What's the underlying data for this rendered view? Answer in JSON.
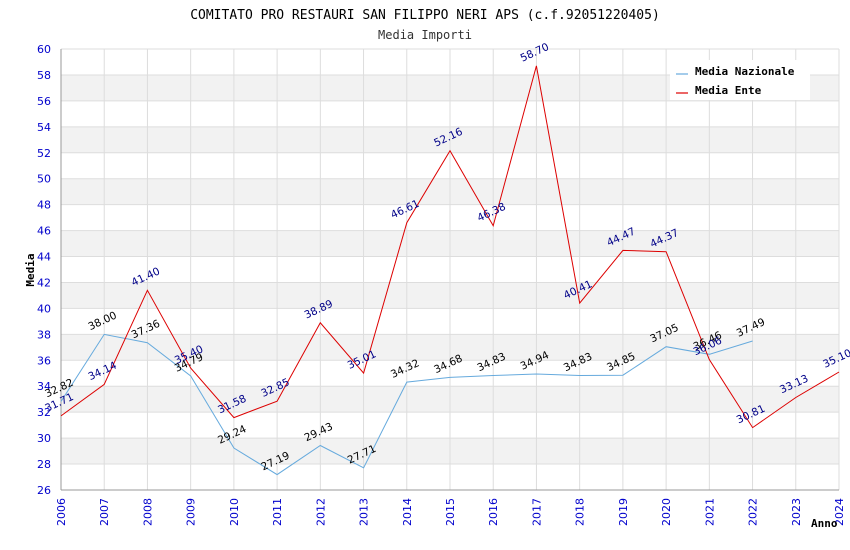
{
  "chart_data": {
    "type": "line",
    "title": "COMITATO PRO RESTAURI SAN FILIPPO NERI APS (c.f.92051220405)",
    "subtitle": "Media Importi",
    "xlabel": "Anno",
    "ylabel": "Media",
    "ylim": [
      26,
      60
    ],
    "yticks": [
      26,
      28,
      30,
      32,
      34,
      36,
      38,
      40,
      42,
      44,
      46,
      48,
      50,
      52,
      54,
      56,
      58,
      60
    ],
    "categories": [
      "2006",
      "2007",
      "2008",
      "2009",
      "2010",
      "2011",
      "2012",
      "2013",
      "2014",
      "2015",
      "2016",
      "2017",
      "2018",
      "2019",
      "2020",
      "2021",
      "2022",
      "2023",
      "2024"
    ],
    "series": [
      {
        "name": "Media Nazionale",
        "color": "#66aadd",
        "label_color": "#000000",
        "values": [
          32.82,
          38.0,
          37.36,
          34.79,
          29.24,
          27.19,
          29.43,
          27.71,
          34.32,
          34.68,
          34.83,
          34.94,
          34.83,
          34.85,
          37.05,
          36.46,
          37.49,
          null,
          null
        ],
        "labels": [
          "32.82",
          "38.00",
          "37.36",
          "34.79",
          "29.24",
          "27.19",
          "29.43",
          "27.71",
          "34.32",
          "34.68",
          "34.83",
          "34.94",
          "34.83",
          "34.85",
          "37.05",
          "36.46",
          "37.49",
          "",
          ""
        ]
      },
      {
        "name": "Media Ente",
        "color": "#dd0000",
        "label_color": "#000088",
        "values": [
          31.71,
          34.14,
          41.4,
          35.4,
          31.58,
          32.85,
          38.89,
          35.01,
          46.61,
          52.16,
          46.38,
          58.7,
          40.41,
          44.47,
          44.37,
          36.06,
          30.81,
          33.13,
          35.1
        ],
        "labels": [
          "31.71",
          "34.14",
          "41.40",
          "35.40",
          "31.58",
          "32.85",
          "38.89",
          "35.01",
          "46.61",
          "52.16",
          "46.38",
          "58.70",
          "40.41",
          "44.47",
          "44.37",
          "36.06",
          "30.81",
          "33.13",
          "35.10"
        ]
      }
    ],
    "legend": {
      "position": "top-right"
    }
  }
}
